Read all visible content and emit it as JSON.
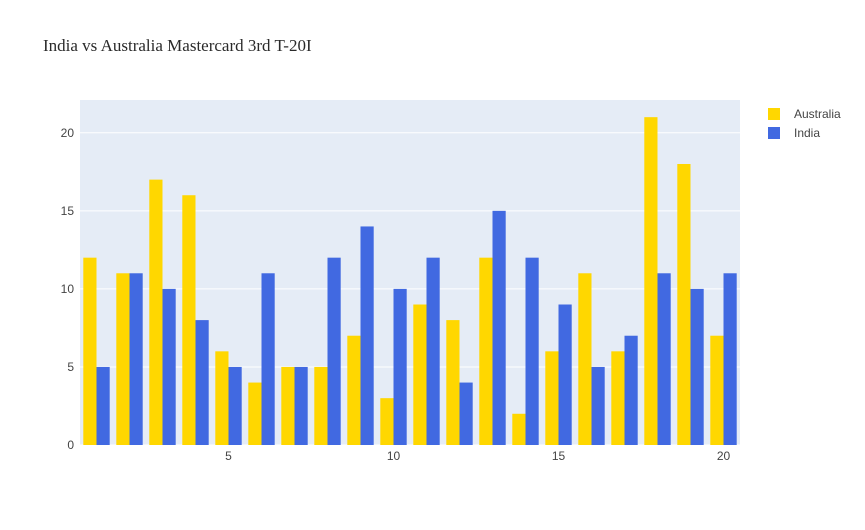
{
  "chart_data": {
    "type": "bar",
    "title": "India vs Australia Mastercard 3rd T-20I",
    "xlabel": "",
    "ylabel": "",
    "x": [
      1,
      2,
      3,
      4,
      5,
      6,
      7,
      8,
      9,
      10,
      11,
      12,
      13,
      14,
      15,
      16,
      17,
      18,
      19,
      20
    ],
    "x_ticks": [
      5,
      10,
      15,
      20
    ],
    "y_ticks": [
      0,
      5,
      10,
      15,
      20
    ],
    "xlim": [
      0.5,
      20.5
    ],
    "ylim": [
      0,
      22.1
    ],
    "grid": true,
    "legend_position": "top-right",
    "series": [
      {
        "name": "Australia",
        "color": "#FFD700",
        "values": [
          12,
          11,
          17,
          16,
          6,
          4,
          5,
          5,
          7,
          3,
          9,
          8,
          12,
          2,
          6,
          11,
          6,
          21,
          18,
          7
        ]
      },
      {
        "name": "India",
        "color": "#4169E1",
        "values": [
          5,
          11,
          10,
          8,
          5,
          11,
          5,
          12,
          14,
          10,
          12,
          4,
          15,
          12,
          9,
          5,
          7,
          11,
          10,
          11
        ]
      }
    ]
  }
}
